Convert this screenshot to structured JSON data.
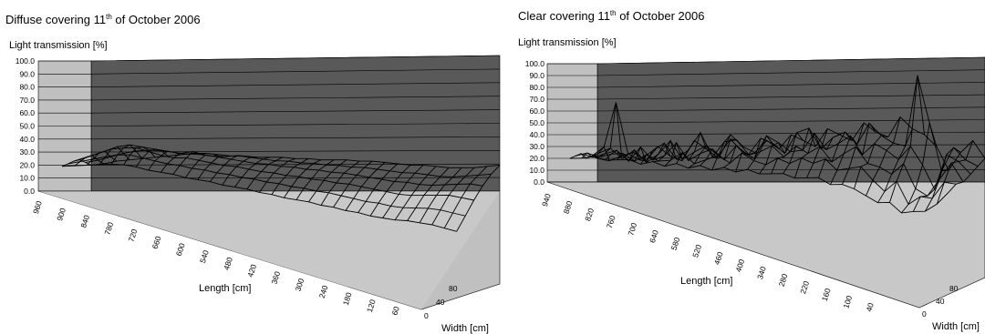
{
  "chart_data": [
    {
      "type": "surface",
      "title": "Diffuse covering 11th of October 2006",
      "title_main": "Diffuse covering 11",
      "title_sup": "th",
      "title_rest": " of October 2006",
      "zlabel": "Light transmission [%]",
      "xlabel": "Length [cm]",
      "ylabel": "Width [cm]",
      "zlim": [
        0,
        100
      ],
      "z_ticks": [
        "100.0",
        "90.0",
        "80.0",
        "70.0",
        "60.0",
        "50.0",
        "40.0",
        "30.0",
        "20.0",
        "10.0",
        "0.0"
      ],
      "x_ticks": [
        "960",
        "900",
        "840",
        "780",
        "720",
        "660",
        "600",
        "540",
        "480",
        "420",
        "360",
        "300",
        "240",
        "180",
        "120",
        "60"
      ],
      "y_ticks": [
        "0",
        "40",
        "80"
      ],
      "grid": true,
      "surface_description_level": 32,
      "length_points": [
        990,
        960,
        930,
        900,
        870,
        840,
        810,
        780,
        750,
        720,
        690,
        660,
        630,
        600,
        570,
        540,
        510,
        480,
        450,
        420,
        390,
        360,
        330,
        300,
        270,
        240,
        210,
        180,
        150,
        120,
        90,
        60,
        30
      ],
      "width_points": [
        0,
        20,
        40,
        60,
        80,
        100
      ],
      "z_values": [
        [
          20,
          21,
          23,
          24,
          25,
          26,
          27,
          28,
          29,
          29,
          28,
          27,
          27,
          26,
          26,
          26,
          25,
          25,
          24,
          24,
          24,
          23,
          23,
          22,
          21,
          20,
          20,
          19,
          18,
          18,
          18,
          19,
          20
        ],
        [
          22,
          24,
          27,
          30,
          32,
          33,
          33,
          32,
          31,
          31,
          30,
          30,
          31,
          30,
          29,
          28,
          28,
          27,
          27,
          26,
          26,
          25,
          25,
          24,
          23,
          22,
          22,
          21,
          20,
          20,
          21,
          22,
          23
        ],
        [
          24,
          28,
          32,
          36,
          38,
          37,
          36,
          35,
          34,
          36,
          34,
          33,
          32,
          31,
          30,
          30,
          29,
          29,
          28,
          28,
          27,
          27,
          26,
          25,
          24,
          23,
          23,
          22,
          22,
          23,
          24,
          25,
          24
        ],
        [
          23,
          27,
          31,
          35,
          37,
          38,
          36,
          34,
          33,
          34,
          33,
          32,
          31,
          31,
          30,
          29,
          29,
          28,
          28,
          27,
          27,
          26,
          26,
          25,
          24,
          23,
          22,
          22,
          23,
          24,
          25,
          24,
          23
        ],
        [
          21,
          24,
          27,
          30,
          33,
          34,
          33,
          32,
          31,
          31,
          30,
          30,
          29,
          29,
          28,
          28,
          27,
          27,
          26,
          26,
          25,
          25,
          24,
          23,
          22,
          22,
          21,
          21,
          22,
          23,
          23,
          22,
          21
        ],
        [
          19,
          21,
          23,
          25,
          27,
          28,
          28,
          27,
          27,
          27,
          26,
          26,
          26,
          25,
          25,
          25,
          24,
          24,
          23,
          23,
          23,
          22,
          22,
          21,
          21,
          20,
          20,
          20,
          21,
          21,
          21,
          20,
          19
        ]
      ]
    },
    {
      "type": "surface",
      "title": "Clear covering 11th of October 2006",
      "title_main": "Clear covering 11",
      "title_sup": "th",
      "title_rest": " of October 2006",
      "zlabel": "Light transmission [%]",
      "xlabel": "Length [cm]",
      "ylabel": "Width [cm]",
      "zlim": [
        0,
        100
      ],
      "z_ticks": [
        "100.0",
        "90.0",
        "80.0",
        "70.0",
        "60.0",
        "50.0",
        "40.0",
        "30.0",
        "20.0",
        "10.0",
        "0.0"
      ],
      "x_ticks": [
        "940",
        "880",
        "820",
        "760",
        "700",
        "640",
        "580",
        "520",
        "460",
        "400",
        "340",
        "280",
        "220",
        "160",
        "100",
        "40"
      ],
      "y_ticks": [
        "0",
        "40",
        "80"
      ],
      "grid": true,
      "length_points": [
        970,
        940,
        910,
        880,
        850,
        820,
        790,
        760,
        730,
        700,
        670,
        640,
        610,
        580,
        550,
        520,
        490,
        460,
        430,
        400,
        370,
        340,
        310,
        280,
        250,
        220,
        190,
        160,
        130,
        100,
        70,
        40,
        10
      ],
      "width_points": [
        0,
        20,
        40,
        60,
        80,
        100
      ],
      "z_values": [
        [
          20,
          18,
          22,
          25,
          18,
          30,
          22,
          18,
          35,
          28,
          20,
          40,
          30,
          25,
          35,
          28,
          40,
          35,
          30,
          45,
          40,
          35,
          50,
          42,
          38,
          55,
          45,
          40,
          30,
          10,
          25,
          35,
          20
        ],
        [
          22,
          30,
          68,
          25,
          20,
          28,
          35,
          22,
          30,
          45,
          25,
          38,
          40,
          28,
          42,
          38,
          30,
          48,
          52,
          35,
          45,
          50,
          40,
          58,
          48,
          42,
          40,
          100,
          60,
          20,
          40,
          30,
          25
        ],
        [
          20,
          25,
          30,
          22,
          30,
          20,
          28,
          40,
          25,
          32,
          38,
          30,
          45,
          35,
          30,
          50,
          45,
          38,
          40,
          55,
          42,
          48,
          55,
          40,
          50,
          45,
          38,
          50,
          35,
          15,
          45,
          40,
          30
        ],
        [
          24,
          22,
          26,
          30,
          22,
          35,
          25,
          30,
          42,
          28,
          35,
          40,
          32,
          45,
          38,
          42,
          48,
          40,
          50,
          45,
          52,
          40,
          48,
          55,
          42,
          40,
          35,
          45,
          25,
          20,
          35,
          50,
          35
        ],
        [
          22,
          26,
          24,
          28,
          30,
          25,
          32,
          28,
          30,
          38,
          30,
          35,
          40,
          35,
          45,
          40,
          38,
          45,
          42,
          48,
          45,
          50,
          42,
          45,
          48,
          38,
          30,
          40,
          22,
          30,
          30,
          45,
          45
        ],
        [
          20,
          22,
          25,
          24,
          26,
          28,
          26,
          30,
          28,
          32,
          30,
          34,
          32,
          36,
          34,
          38,
          36,
          38,
          40,
          38,
          40,
          42,
          38,
          40,
          38,
          34,
          30,
          32,
          25,
          28,
          30,
          38,
          50
        ]
      ]
    }
  ]
}
